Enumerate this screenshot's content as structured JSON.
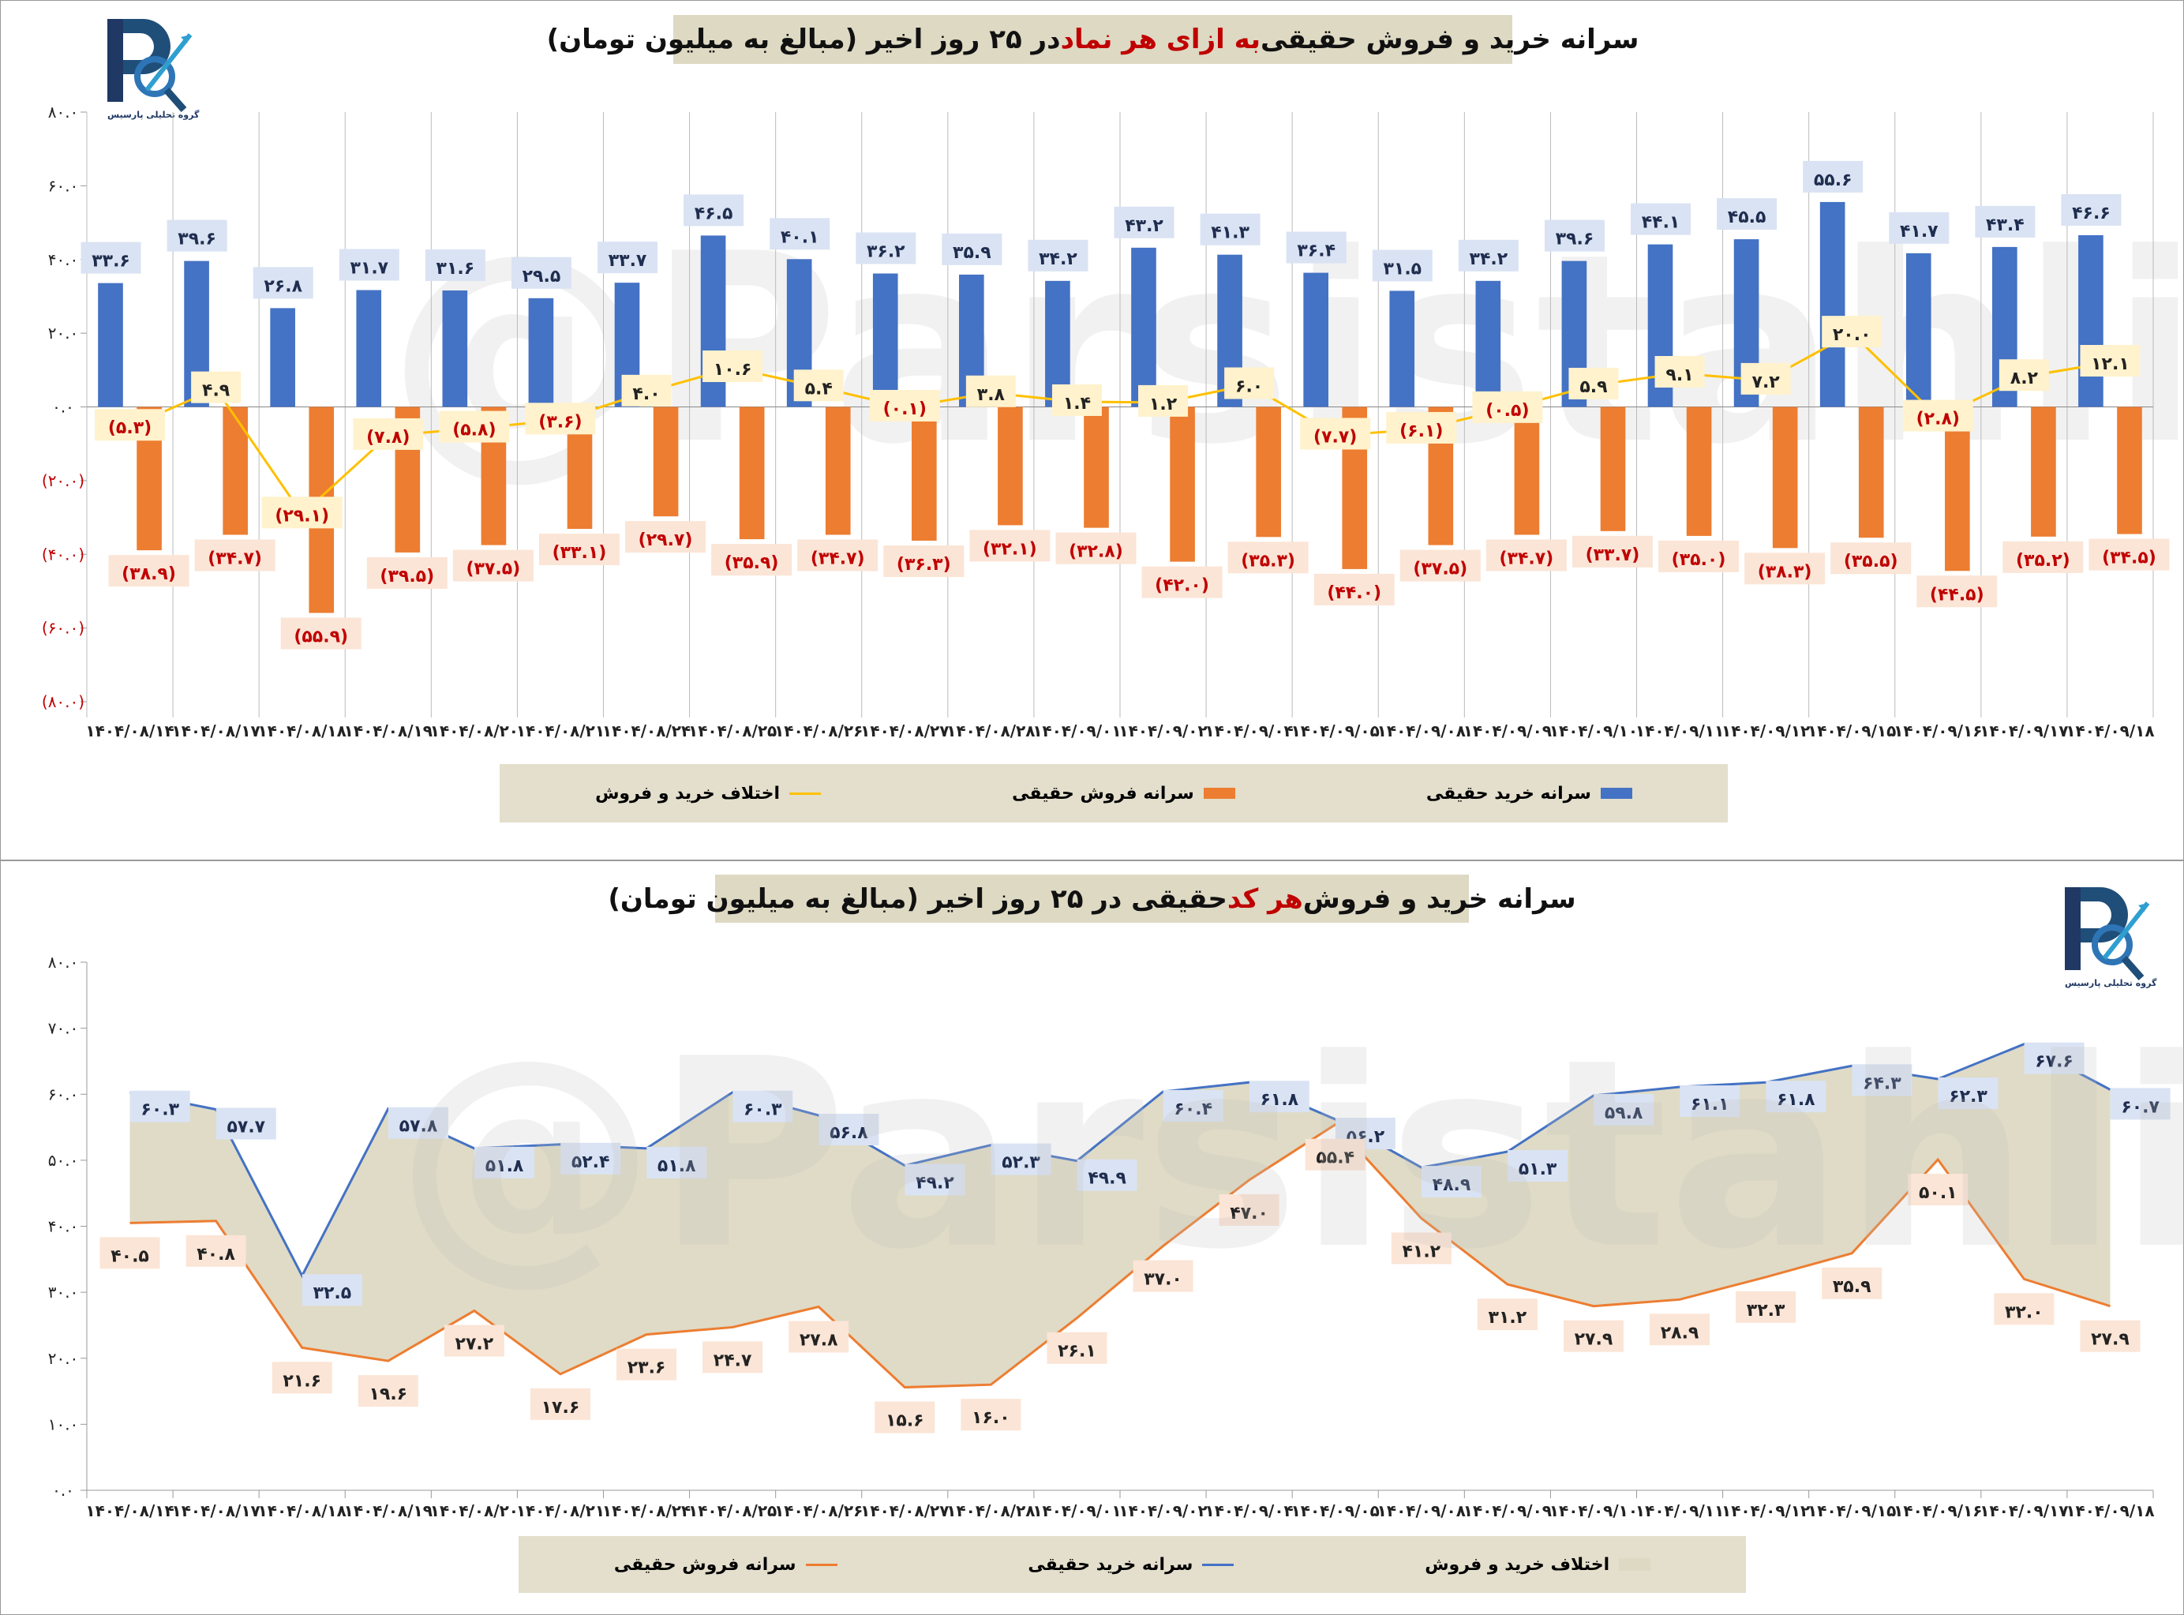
{
  "watermark": "@Parsistahlil",
  "logo_text": "گروه تحلیلی پارسیس",
  "chart1_title": {
    "p1": "سرانه خرید و فروش حقیقی ",
    "p2": "به ازای هر نماد",
    "p3": " در ۲۵ روز اخیر (مبالغ به میلیون تومان)"
  },
  "chart2_title": {
    "p1": "سرانه خرید و فروش ",
    "p2": "هر کد",
    "p3": " حقیقی در ۲۵ روز اخیر (مبالغ به میلیون تومان)"
  },
  "colors": {
    "buy": "#4472c4",
    "sell": "#ed7d31",
    "diff": "#ffc000",
    "area": "#ddd9c3",
    "neg": "#c00000"
  },
  "chart_data": [
    {
      "type": "bar",
      "title": "سرانه خرید و فروش حقیقی به ازای هر نماد در ۲۵ روز اخیر (مبالغ به میلیون تومان)",
      "ylim": [
        -80,
        80
      ],
      "yticks": [
        80,
        60,
        40,
        20,
        0,
        -20,
        -40,
        -60,
        -80
      ],
      "grid": "vertical",
      "legend": "bottom",
      "categories": [
        "۱۴۰۴/۰۸/۱۴",
        "۱۴۰۴/۰۸/۱۷",
        "۱۴۰۴/۰۸/۱۸",
        "۱۴۰۴/۰۸/۱۹",
        "۱۴۰۴/۰۸/۲۰",
        "۱۴۰۴/۰۸/۲۱",
        "۱۴۰۴/۰۸/۲۴",
        "۱۴۰۴/۰۸/۲۵",
        "۱۴۰۴/۰۸/۲۶",
        "۱۴۰۴/۰۸/۲۷",
        "۱۴۰۴/۰۸/۲۸",
        "۱۴۰۴/۰۹/۰۱",
        "۱۴۰۴/۰۹/۰۲",
        "۱۴۰۴/۰۹/۰۴",
        "۱۴۰۴/۰۹/۰۵",
        "۱۴۰۴/۰۹/۰۸",
        "۱۴۰۴/۰۹/۰۹",
        "۱۴۰۴/۰۹/۱۰",
        "۱۴۰۴/۰۹/۱۱",
        "۱۴۰۴/۰۹/۱۲",
        "۱۴۰۴/۰۹/۱۵",
        "۱۴۰۴/۰۹/۱۶",
        "۱۴۰۴/۰۹/۱۷",
        "۱۴۰۴/۰۹/۱۸"
      ],
      "series": [
        {
          "name": "سرانه خرید حقیقی",
          "type": "bar",
          "values": [
            33.6,
            39.6,
            26.8,
            31.7,
            31.6,
            29.5,
            33.7,
            46.5,
            40.1,
            36.2,
            35.9,
            34.2,
            43.2,
            41.3,
            36.4,
            31.5,
            34.2,
            39.6,
            44.1,
            45.5,
            55.6,
            41.7,
            43.4,
            46.6
          ]
        },
        {
          "name": "سرانه فروش حقیقی",
          "type": "bar",
          "values": [
            -38.9,
            -34.7,
            -55.9,
            -39.5,
            -37.5,
            -33.1,
            -29.7,
            -35.9,
            -34.7,
            -36.3,
            -32.1,
            -32.8,
            -42.0,
            -35.3,
            -44.0,
            -37.5,
            -34.7,
            -33.7,
            -35.0,
            -38.3,
            -35.5,
            -44.5,
            -35.2,
            -34.5
          ]
        },
        {
          "name": "اختلاف خرید و فروش",
          "type": "line",
          "values": [
            -5.3,
            4.9,
            -29.1,
            -7.8,
            -5.8,
            -3.6,
            4.0,
            10.6,
            5.4,
            -0.1,
            3.8,
            1.4,
            1.2,
            6.0,
            -7.7,
            -6.1,
            -0.5,
            5.9,
            9.1,
            7.2,
            20.0,
            -2.8,
            8.2,
            12.1
          ]
        }
      ]
    },
    {
      "type": "line",
      "title": "سرانه خرید و فروش هر کد حقیقی در ۲۵ روز اخیر (مبالغ به میلیون تومان)",
      "ylim": [
        0,
        80
      ],
      "yticks": [
        80,
        70,
        60,
        50,
        40,
        30,
        20,
        10,
        0
      ],
      "grid": "none",
      "legend": "bottom",
      "series": [
        {
          "name": "اختلاف خرید و فروش",
          "type": "area"
        },
        {
          "name": "سرانه خرید حقیقی",
          "type": "line",
          "values": [
            60.3,
            57.7,
            32.5,
            57.8,
            51.8,
            52.4,
            51.8,
            60.3,
            56.8,
            49.2,
            52.3,
            49.9,
            60.4,
            61.8,
            56.2,
            48.9,
            51.3,
            59.8,
            61.1,
            61.8,
            64.3,
            62.3,
            67.6,
            60.7
          ]
        },
        {
          "name": "سرانه فروش حقیقی",
          "type": "line",
          "values": [
            40.5,
            40.8,
            21.6,
            19.6,
            27.2,
            17.6,
            23.6,
            24.7,
            27.8,
            15.6,
            16.0,
            26.1,
            37.0,
            47.0,
            55.4,
            41.2,
            31.2,
            27.9,
            28.9,
            32.3,
            35.9,
            50.1,
            32.0,
            27.9
          ]
        }
      ]
    }
  ]
}
